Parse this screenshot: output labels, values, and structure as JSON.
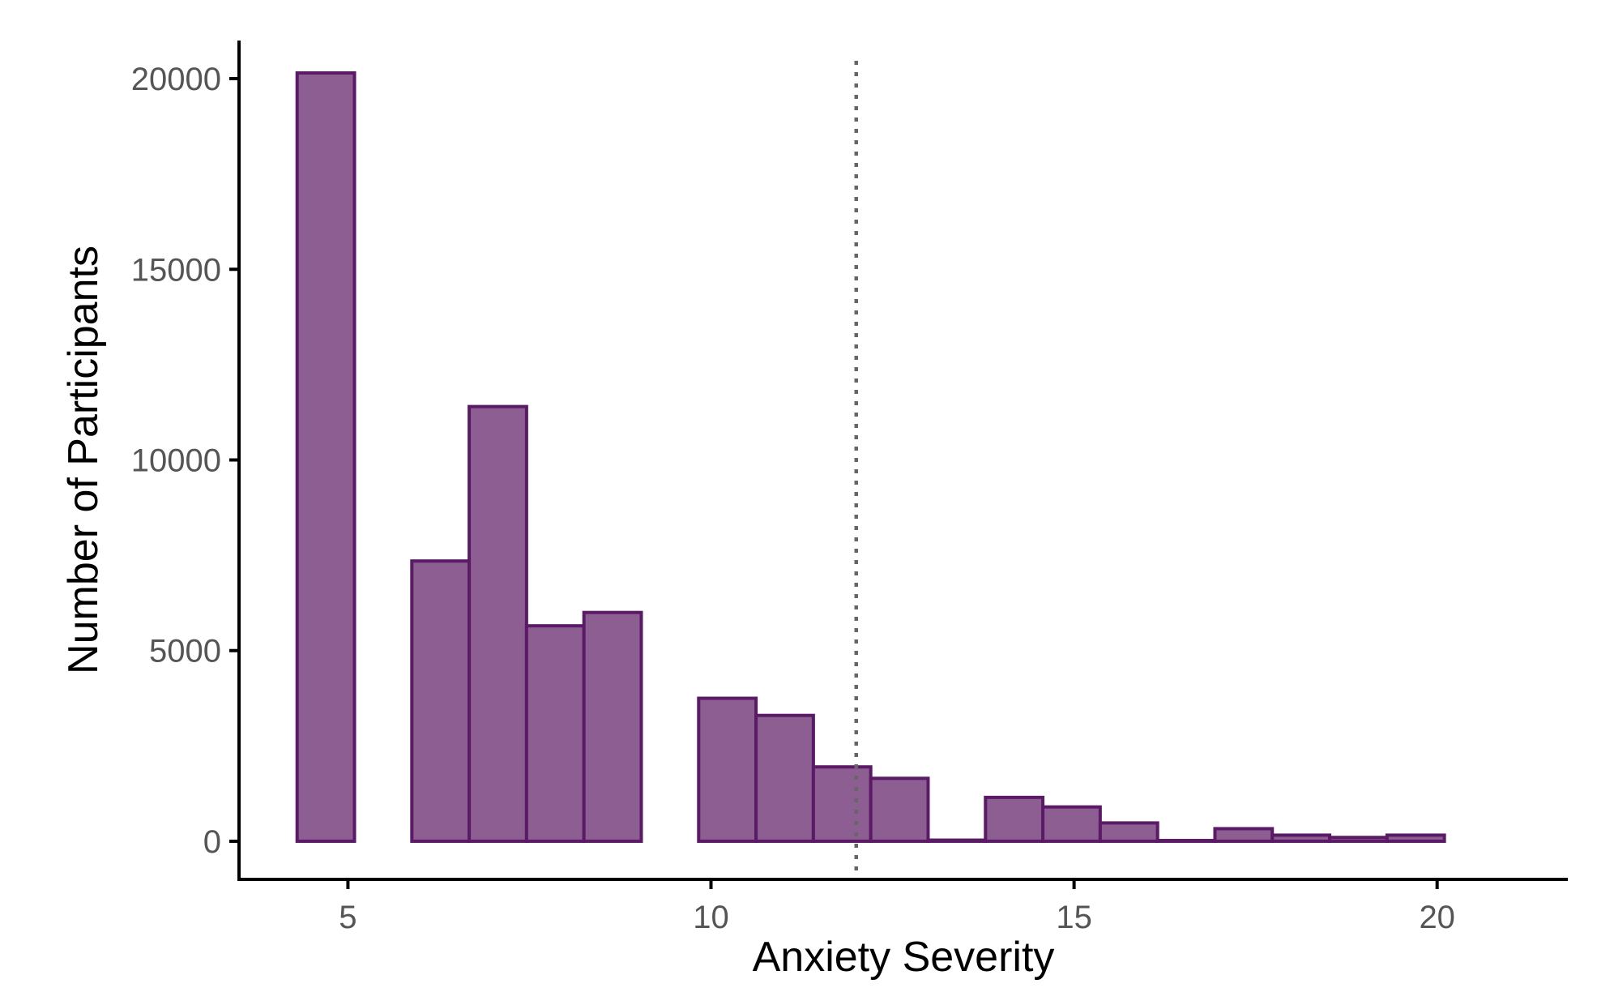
{
  "chart_data": {
    "type": "bar",
    "xlabel": "Anxiety Severity",
    "ylabel": "Number of Participants",
    "xlim": [
      3.5,
      21.8
    ],
    "ylim": [
      -1000,
      21000
    ],
    "xticks": [
      5,
      10,
      15,
      20
    ],
    "yticks": [
      0,
      5000,
      10000,
      15000,
      20000
    ],
    "bin_width": 0.79,
    "bins": [
      {
        "x_start": 4.3,
        "value": 20150
      },
      {
        "x_start": 5.09,
        "value": 0
      },
      {
        "x_start": 5.88,
        "value": 7350
      },
      {
        "x_start": 6.67,
        "value": 11400
      },
      {
        "x_start": 7.46,
        "value": 5650
      },
      {
        "x_start": 8.25,
        "value": 6000
      },
      {
        "x_start": 9.04,
        "value": 0
      },
      {
        "x_start": 9.83,
        "value": 3750
      },
      {
        "x_start": 10.62,
        "value": 3300
      },
      {
        "x_start": 11.41,
        "value": 1950
      },
      {
        "x_start": 12.2,
        "value": 1650
      },
      {
        "x_start": 12.99,
        "value": 30
      },
      {
        "x_start": 13.78,
        "value": 1150
      },
      {
        "x_start": 14.57,
        "value": 900
      },
      {
        "x_start": 15.36,
        "value": 480
      },
      {
        "x_start": 16.15,
        "value": 20
      },
      {
        "x_start": 16.94,
        "value": 330
      },
      {
        "x_start": 17.73,
        "value": 160
      },
      {
        "x_start": 18.52,
        "value": 100
      },
      {
        "x_start": 19.31,
        "value": 160
      }
    ],
    "reference_line": {
      "x": 12,
      "style": "dotted"
    },
    "bar_fill": "#8c5e91",
    "bar_stroke": "#5a1a66",
    "reference_line_color": "#666666",
    "grid": false,
    "legend": "none"
  }
}
